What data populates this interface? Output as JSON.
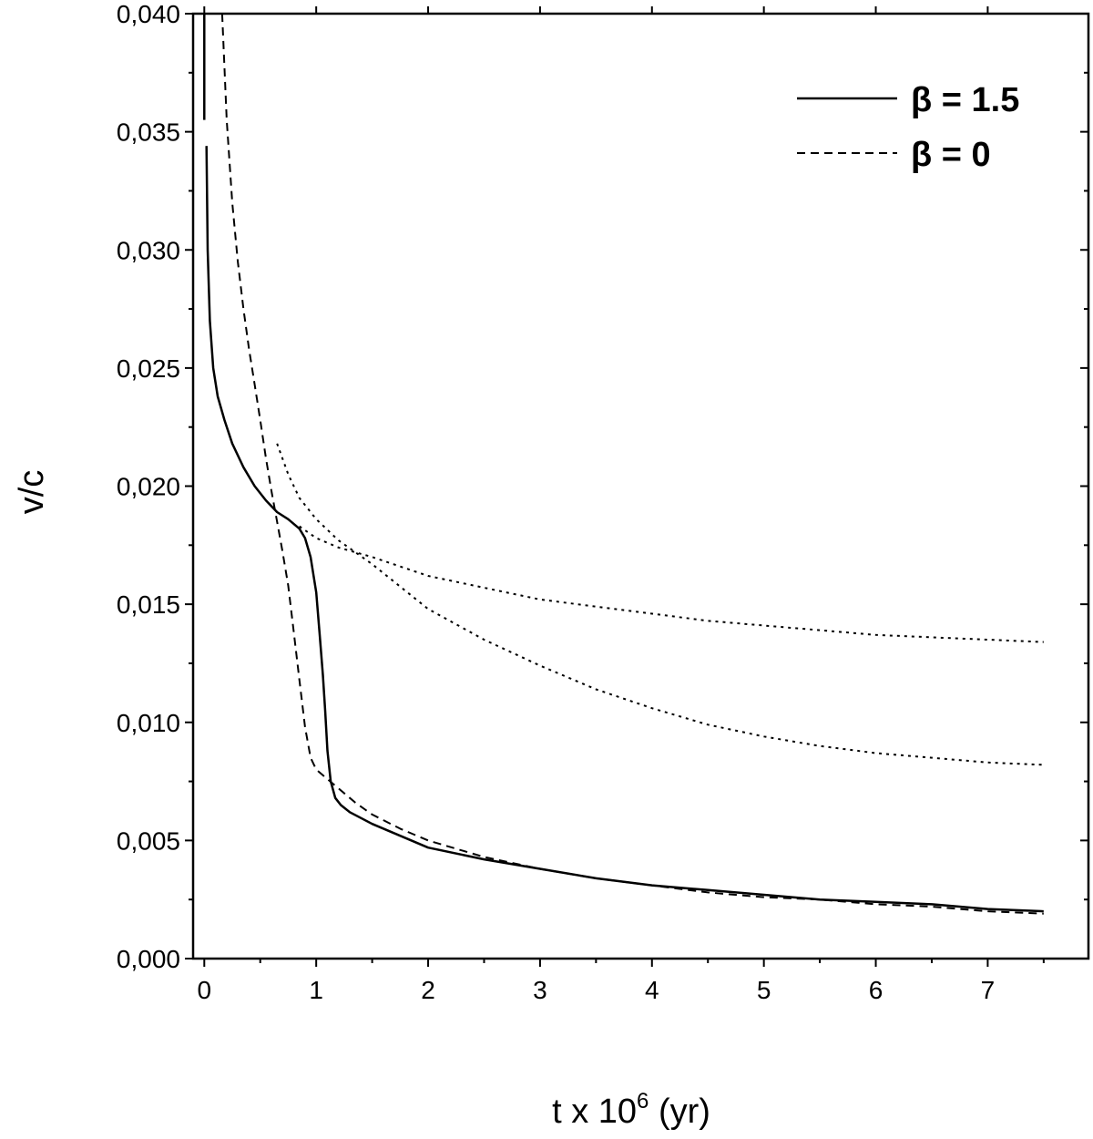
{
  "chart_data": {
    "type": "line",
    "title": "",
    "xlabel_parts": {
      "base": "t x 10",
      "sup": "6",
      "unit": " (yr)"
    },
    "ylabel": "v/c",
    "xlim": [
      -0.1,
      7.9
    ],
    "ylim": [
      0.0,
      0.04
    ],
    "x_ticks": [
      0,
      1,
      2,
      3,
      4,
      5,
      6,
      7
    ],
    "x_tick_labels": [
      "0",
      "1",
      "2",
      "3",
      "4",
      "5",
      "6",
      "7"
    ],
    "x_minor_ticks": [
      0.5,
      1.5,
      2.5,
      3.5,
      4.5,
      5.5,
      6.5,
      7.5
    ],
    "y_ticks": [
      0.0,
      0.005,
      0.01,
      0.015,
      0.02,
      0.025,
      0.03,
      0.035,
      0.04
    ],
    "y_tick_labels": [
      "0,000",
      "0,005",
      "0,010",
      "0,015",
      "0,020",
      "0,025",
      "0,030",
      "0,035",
      "0,040"
    ],
    "y_minor_ticks": [
      0.0025,
      0.0075,
      0.0125,
      0.0175,
      0.0225,
      0.0275,
      0.0325,
      0.0375
    ],
    "grid": false,
    "legend_position": "top-right",
    "legend": [
      {
        "label": "β = 1.5",
        "style": "solid"
      },
      {
        "label": "β = 0",
        "style": "dashed"
      }
    ],
    "series": [
      {
        "name": "β = 1.5",
        "style": "solid",
        "x": [
          0.02,
          0.03,
          0.05,
          0.08,
          0.12,
          0.18,
          0.25,
          0.35,
          0.45,
          0.55,
          0.65,
          0.75,
          0.85,
          0.9,
          0.95,
          1.0,
          1.03,
          1.06,
          1.08,
          1.1,
          1.13,
          1.17,
          1.22,
          1.3,
          1.5,
          1.75,
          2.0,
          2.5,
          3.0,
          3.5,
          4.0,
          4.5,
          5.0,
          5.5,
          6.0,
          6.5,
          7.0,
          7.5
        ],
        "y": [
          0.0344,
          0.03,
          0.027,
          0.025,
          0.0238,
          0.0228,
          0.0218,
          0.0208,
          0.02,
          0.0194,
          0.0189,
          0.0186,
          0.0182,
          0.0178,
          0.017,
          0.0155,
          0.0138,
          0.012,
          0.0105,
          0.0088,
          0.0075,
          0.0068,
          0.0065,
          0.0062,
          0.0057,
          0.0052,
          0.0047,
          0.0042,
          0.0038,
          0.0034,
          0.0031,
          0.0029,
          0.0027,
          0.0025,
          0.0024,
          0.0023,
          0.0021,
          0.002
        ]
      },
      {
        "name": "β = 0",
        "style": "dashed",
        "x": [
          0.16,
          0.2,
          0.25,
          0.3,
          0.35,
          0.4,
          0.45,
          0.5,
          0.55,
          0.6,
          0.65,
          0.7,
          0.75,
          0.8,
          0.85,
          0.9,
          0.95,
          1.0,
          1.05,
          1.1,
          1.2,
          1.35,
          1.5,
          1.75,
          2.0,
          2.5,
          3.0,
          3.5,
          4.0,
          4.5,
          5.0,
          5.5,
          6.0,
          6.5,
          7.0,
          7.5
        ],
        "y": [
          0.04,
          0.0355,
          0.032,
          0.0295,
          0.0275,
          0.0258,
          0.0243,
          0.0228,
          0.0212,
          0.0198,
          0.0185,
          0.0172,
          0.0158,
          0.0138,
          0.0118,
          0.0098,
          0.0085,
          0.008,
          0.0078,
          0.0076,
          0.0072,
          0.0066,
          0.0061,
          0.0055,
          0.005,
          0.0043,
          0.0038,
          0.0034,
          0.0031,
          0.0028,
          0.0026,
          0.0025,
          0.0023,
          0.0022,
          0.002,
          0.0019
        ]
      },
      {
        "style": "dotted",
        "x": [
          0.85,
          1.0,
          1.2,
          1.5,
          2.0,
          2.5,
          3.0,
          3.5,
          4.0,
          4.5,
          5.0,
          5.5,
          6.0,
          6.5,
          7.0,
          7.5
        ],
        "y": [
          0.0183,
          0.0178,
          0.0174,
          0.017,
          0.0162,
          0.0157,
          0.0152,
          0.0149,
          0.0146,
          0.0143,
          0.0141,
          0.0139,
          0.0137,
          0.0136,
          0.0135,
          0.0134
        ]
      },
      {
        "style": "dotted",
        "x": [
          0.65,
          0.75,
          0.85,
          1.0,
          1.2,
          1.5,
          2.0,
          2.5,
          3.0,
          3.5,
          4.0,
          4.5,
          5.0,
          5.5,
          6.0,
          6.5,
          7.0,
          7.5
        ],
        "y": [
          0.0218,
          0.0205,
          0.0195,
          0.0186,
          0.0177,
          0.0167,
          0.0148,
          0.0135,
          0.0124,
          0.0114,
          0.0106,
          0.0099,
          0.0094,
          0.009,
          0.0087,
          0.0085,
          0.0083,
          0.0082
        ]
      }
    ]
  }
}
